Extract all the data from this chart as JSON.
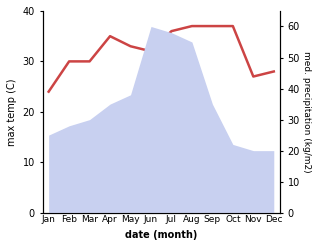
{
  "months": [
    "Jan",
    "Feb",
    "Mar",
    "Apr",
    "May",
    "Jun",
    "Jul",
    "Aug",
    "Sep",
    "Oct",
    "Nov",
    "Dec"
  ],
  "temperature": [
    24,
    30,
    30,
    35,
    33,
    32,
    36,
    37,
    37,
    37,
    27,
    28
  ],
  "precipitation": [
    25,
    28,
    30,
    35,
    38,
    60,
    58,
    55,
    35,
    22,
    20,
    20
  ],
  "temp_color": "#cc4444",
  "precip_fill_color": "#c8d0f0",
  "ylabel_left": "max temp (C)",
  "ylabel_right": "med. precipitation (kg/m2)",
  "xlabel": "date (month)",
  "ylim_left": [
    0,
    40
  ],
  "ylim_right": [
    0,
    65
  ],
  "yticks_left": [
    0,
    10,
    20,
    30,
    40
  ],
  "yticks_right": [
    0,
    10,
    20,
    30,
    40,
    50,
    60
  ],
  "background_color": "#ffffff"
}
